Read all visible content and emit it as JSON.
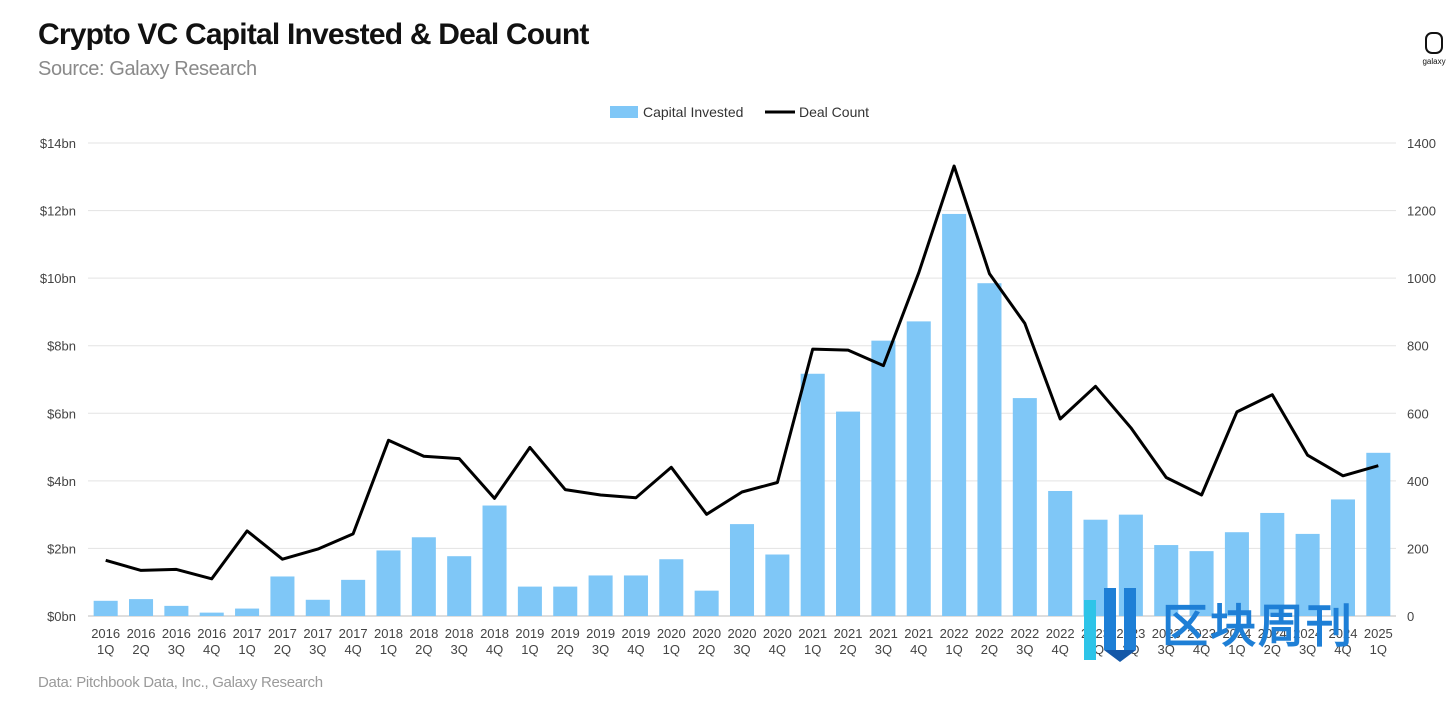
{
  "header": {
    "title": "Crypto VC Capital Invested & Deal Count",
    "subtitle": "Source: Galaxy Research"
  },
  "logo": {
    "icon": "galaxy-logo-icon",
    "text": "galaxy"
  },
  "footnote": "Data: Pitchbook Data, Inc., Galaxy Research",
  "watermark": {
    "icon": "quchain-logo-icon",
    "text": "区块周刊",
    "color": "#1e7fd6"
  },
  "chart_data": {
    "type": "bar",
    "legend": {
      "position": "top-center",
      "bar_label": "Capital Invested",
      "line_label": "Deal Count"
    },
    "categories": [
      [
        "2016",
        "1Q"
      ],
      [
        "2016",
        "2Q"
      ],
      [
        "2016",
        "3Q"
      ],
      [
        "2016",
        "4Q"
      ],
      [
        "2017",
        "1Q"
      ],
      [
        "2017",
        "2Q"
      ],
      [
        "2017",
        "3Q"
      ],
      [
        "2017",
        "4Q"
      ],
      [
        "2018",
        "1Q"
      ],
      [
        "2018",
        "2Q"
      ],
      [
        "2018",
        "3Q"
      ],
      [
        "2018",
        "4Q"
      ],
      [
        "2019",
        "1Q"
      ],
      [
        "2019",
        "2Q"
      ],
      [
        "2019",
        "3Q"
      ],
      [
        "2019",
        "4Q"
      ],
      [
        "2020",
        "1Q"
      ],
      [
        "2020",
        "2Q"
      ],
      [
        "2020",
        "3Q"
      ],
      [
        "2020",
        "4Q"
      ],
      [
        "2021",
        "1Q"
      ],
      [
        "2021",
        "2Q"
      ],
      [
        "2021",
        "3Q"
      ],
      [
        "2021",
        "4Q"
      ],
      [
        "2022",
        "1Q"
      ],
      [
        "2022",
        "2Q"
      ],
      [
        "2022",
        "3Q"
      ],
      [
        "2022",
        "4Q"
      ],
      [
        "2023",
        "1Q"
      ],
      [
        "2023",
        "2Q"
      ],
      [
        "2023",
        "3Q"
      ],
      [
        "2023",
        "4Q"
      ],
      [
        "2024",
        "1Q"
      ],
      [
        "2024",
        "2Q"
      ],
      [
        "2024",
        "3Q"
      ],
      [
        "2024",
        "4Q"
      ],
      [
        "2025",
        "1Q"
      ]
    ],
    "series": [
      {
        "name": "Capital Invested",
        "kind": "bar",
        "axis": "left",
        "color": "#7fc7f7",
        "values": [
          0.45,
          0.5,
          0.3,
          0.1,
          0.22,
          1.17,
          0.48,
          1.07,
          1.94,
          2.33,
          1.77,
          3.27,
          0.87,
          0.87,
          1.2,
          1.2,
          1.68,
          0.75,
          2.72,
          1.82,
          7.17,
          6.05,
          8.15,
          8.72,
          11.9,
          9.85,
          6.45,
          3.7,
          2.85,
          3.0,
          2.1,
          1.92,
          2.48,
          3.05,
          2.43,
          3.45,
          4.83
        ]
      },
      {
        "name": "Deal Count",
        "kind": "line",
        "axis": "right",
        "color": "#000000",
        "values": [
          165,
          135,
          138,
          110,
          252,
          168,
          198,
          243,
          520,
          473,
          466,
          348,
          499,
          374,
          358,
          350,
          440,
          301,
          367,
          395,
          790,
          787,
          741,
          1016,
          1332,
          1013,
          866,
          583,
          680,
          557,
          410,
          358,
          604,
          655,
          476,
          415,
          445
        ]
      }
    ],
    "y_left": {
      "min": 0,
      "max": 14,
      "step": 2,
      "tick_labels": [
        "$0bn",
        "$2bn",
        "$4bn",
        "$6bn",
        "$8bn",
        "$10bn",
        "$12bn",
        "$14bn"
      ]
    },
    "y_right": {
      "min": 0,
      "max": 1400,
      "step": 200,
      "tick_labels": [
        "0",
        "200",
        "400",
        "600",
        "800",
        "1000",
        "1200",
        "1400"
      ]
    },
    "grid": true
  }
}
